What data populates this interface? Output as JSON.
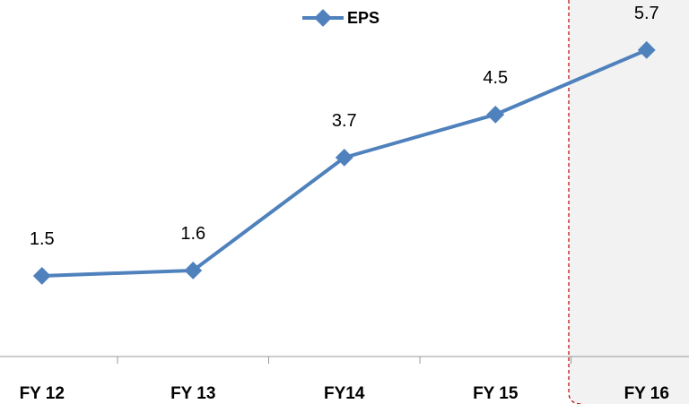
{
  "chart_data": {
    "type": "line",
    "categories": [
      "FY 12",
      "FY 13",
      "FY14",
      "FY 15",
      "FY 16"
    ],
    "series": [
      {
        "name": "EPS",
        "color": "#4f81bd",
        "values": [
          1.5,
          1.6,
          3.7,
          4.5,
          5.7
        ]
      }
    ],
    "ylim": [
      0,
      6.63
    ]
  }
}
